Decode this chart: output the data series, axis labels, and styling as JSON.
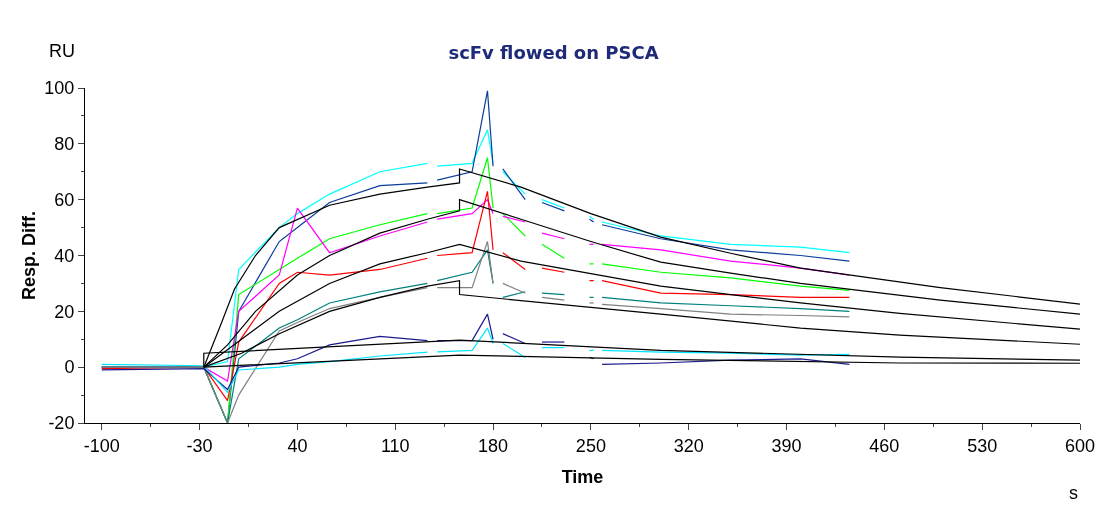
{
  "chart_data": {
    "type": "line",
    "title": "scFv flowed on PSCA",
    "xlabel": "Time",
    "ylabel": "Resp. Diff.",
    "annotations": [
      "RU",
      "s"
    ],
    "xlim": [
      -112,
      600
    ],
    "ylim": [
      -20,
      100
    ],
    "xticks": [
      -100,
      -30,
      40,
      110,
      180,
      250,
      320,
      390,
      460,
      530,
      600
    ],
    "yticks": [
      -20,
      0,
      20,
      40,
      60,
      80,
      100
    ],
    "x": [
      -100,
      -27,
      -10,
      -2,
      27,
      40,
      63,
      99,
      133,
      136,
      140,
      165,
      176,
      180,
      185,
      187,
      203,
      208,
      215,
      231,
      240,
      249,
      252,
      255,
      258,
      300,
      350,
      400,
      435
    ],
    "series": [
      {
        "color": "#00ffff",
        "values": [
          0,
          0,
          2,
          35,
          50,
          55,
          62,
          70,
          73,
          null,
          72,
          73,
          85,
          73,
          null,
          70,
          62,
          null,
          60,
          57,
          null,
          54,
          53,
          null,
          52,
          47,
          44,
          43,
          41
        ]
      },
      {
        "color": "#0a3c9c",
        "values": [
          0,
          0,
          -20,
          20,
          45,
          50,
          59,
          65,
          66,
          null,
          67,
          70,
          99,
          72,
          null,
          71,
          60,
          null,
          59,
          56,
          null,
          53,
          52,
          null,
          51,
          46,
          42,
          40,
          38
        ]
      },
      {
        "color": "#00ff00",
        "values": [
          0,
          0,
          -20,
          26,
          35,
          39,
          46,
          51,
          55,
          null,
          55,
          57,
          75,
          57,
          null,
          55,
          47,
          null,
          44,
          39,
          null,
          37,
          37,
          null,
          37,
          34,
          32,
          29,
          27.5
        ]
      },
      {
        "color": "#ff00ff",
        "values": [
          0,
          0,
          -5,
          20,
          33,
          57,
          41,
          47,
          52,
          null,
          53,
          55,
          60,
          55,
          null,
          54,
          52,
          null,
          48,
          46,
          null,
          44,
          44,
          null,
          44,
          42,
          38,
          35.5,
          33
        ]
      },
      {
        "color": "#ff0000",
        "values": [
          -0.5,
          0,
          -12,
          9,
          30,
          34,
          33,
          35,
          39,
          null,
          40,
          41,
          63,
          42,
          null,
          41,
          35,
          null,
          35.5,
          34,
          null,
          31,
          31,
          null,
          31,
          26.5,
          26,
          25,
          25
        ]
      },
      {
        "color": "#008080",
        "values": [
          0,
          0,
          -20,
          3,
          14,
          17,
          23,
          27,
          30,
          null,
          31,
          34,
          42,
          30,
          null,
          25,
          27,
          null,
          26.5,
          26,
          null,
          25,
          25,
          null,
          25,
          23,
          22,
          21,
          20
        ]
      },
      {
        "color": "#808080",
        "values": [
          0,
          0,
          -20,
          -10,
          13,
          16,
          21,
          25,
          28.5,
          null,
          28.5,
          28.5,
          45,
          30,
          null,
          30,
          26.5,
          null,
          25,
          24,
          null,
          23,
          23,
          null,
          22.5,
          21,
          19,
          18.5,
          18
        ]
      },
      {
        "color": "#1a1a8c",
        "values": [
          -1,
          -0.5,
          -8,
          0,
          1.5,
          3,
          8,
          11,
          9.5,
          null,
          9.5,
          9.5,
          19,
          10,
          null,
          12,
          8.5,
          null,
          9,
          9,
          null,
          3.5,
          3,
          null,
          1,
          1.5,
          2.5,
          3,
          1
        ]
      },
      {
        "color": "#00e5ff",
        "values": [
          1,
          0.5,
          -9,
          -1,
          0,
          1,
          2,
          4,
          5.4,
          null,
          5.5,
          6,
          14,
          8.5,
          null,
          8.5,
          3.5,
          null,
          7,
          7,
          null,
          6,
          6,
          null,
          6,
          5.4,
          5,
          4.3,
          4.6
        ]
      },
      {
        "color": "#000000",
        "x": [
          -27,
          -15,
          -5,
          10,
          27,
          63,
          99,
          133,
          156,
          156,
          200,
          250,
          300,
          350,
          400,
          500,
          600
        ],
        "values": [
          0,
          15,
          28,
          40,
          50,
          58,
          62,
          64.5,
          66,
          71,
          64.5,
          55,
          46.6,
          40.8,
          35.5,
          28.5,
          22.6
        ]
      },
      {
        "color": "#000000",
        "x": [
          -27,
          -10,
          10,
          40,
          63,
          99,
          133,
          156,
          156,
          200,
          250,
          300,
          350,
          400,
          500,
          600
        ],
        "values": [
          0,
          8,
          20,
          33,
          40,
          48,
          53,
          56,
          60,
          53,
          45,
          37.6,
          33.7,
          30,
          24,
          19
        ]
      },
      {
        "color": "#000000",
        "x": [
          -27,
          0,
          27,
          63,
          99,
          133,
          156,
          200,
          300,
          400,
          471,
          600
        ],
        "values": [
          0,
          10,
          20,
          30,
          37,
          41,
          44,
          38,
          29,
          23,
          19.3,
          13.6
        ]
      },
      {
        "color": "#000000",
        "x": [
          -27,
          0,
          27,
          63,
          99,
          133,
          156,
          156,
          300,
          400,
          471,
          600
        ],
        "values": [
          0,
          5,
          12,
          20,
          25,
          29,
          31,
          26,
          19,
          14,
          11.5,
          8.2
        ]
      },
      {
        "color": "#000000",
        "x": [
          -27,
          -27,
          156,
          300,
          471,
          600
        ],
        "values": [
          0,
          5,
          9.7,
          6,
          3.6,
          2.5
        ]
      },
      {
        "color": "#000000",
        "x": [
          -27,
          156,
          300,
          471,
          600
        ],
        "values": [
          0,
          4.3,
          2.8,
          1.5,
          1.4
        ]
      }
    ]
  }
}
